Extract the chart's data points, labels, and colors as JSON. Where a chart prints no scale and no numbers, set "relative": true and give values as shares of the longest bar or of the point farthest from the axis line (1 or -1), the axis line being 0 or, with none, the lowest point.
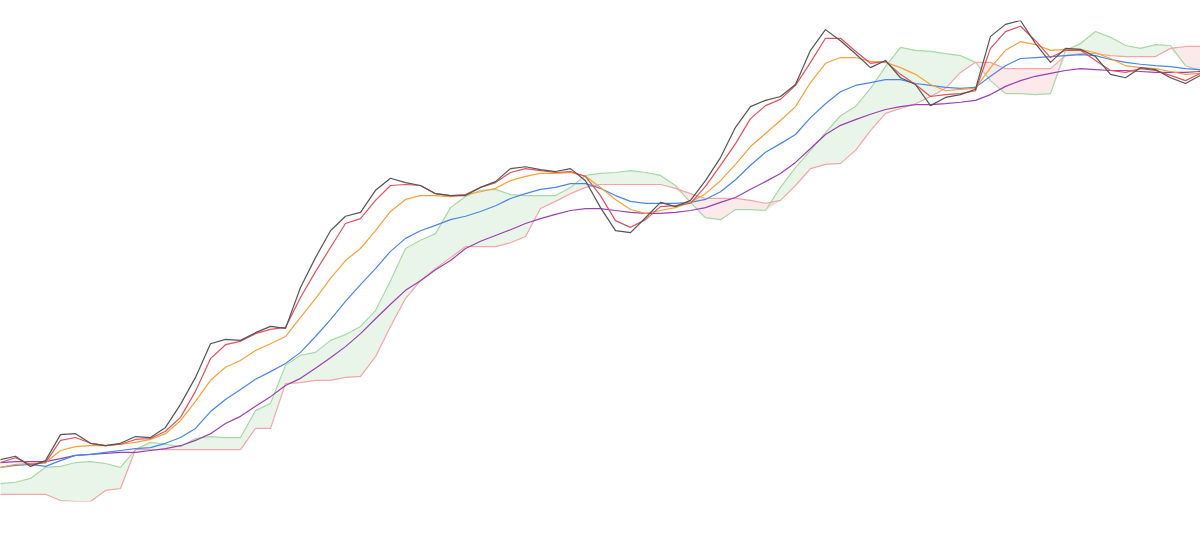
{
  "chart_data": {
    "type": "line",
    "relative": true,
    "categories": [
      null,
      null,
      null,
      null,
      null,
      null,
      null,
      null,
      null,
      null,
      null,
      null,
      null,
      null,
      null,
      null,
      null,
      null,
      null,
      null,
      null,
      null,
      null,
      null,
      null,
      null,
      null,
      null,
      null,
      null,
      null,
      null,
      null,
      null,
      null,
      null,
      null,
      null,
      null,
      null,
      null,
      null,
      null,
      null,
      null,
      null,
      null,
      null,
      null,
      null,
      null,
      null,
      null,
      null,
      null,
      null,
      null,
      null,
      null,
      null,
      null,
      null,
      null,
      null,
      null,
      null,
      null,
      null,
      null,
      null,
      null,
      null,
      null,
      null,
      null,
      null,
      null,
      null,
      null,
      null,
      null
    ],
    "series": [
      {
        "color": "#a8d8a8",
        "values": [
          0.037,
          0.04,
          0.048,
          0.071,
          0.073,
          0.081,
          0.083,
          0.079,
          0.071,
          0.108,
          0.123,
          0.119,
          0.114,
          0.131,
          0.135,
          0.133,
          0.133,
          0.189,
          0.204,
          0.283,
          0.304,
          0.31,
          0.335,
          0.347,
          0.364,
          0.397,
          0.459,
          0.526,
          0.543,
          0.557,
          0.611,
          0.634,
          0.647,
          0.649,
          0.638,
          0.636,
          0.636,
          0.636,
          0.653,
          0.678,
          0.682,
          0.684,
          0.688,
          0.684,
          0.678,
          0.657,
          0.622,
          0.59,
          0.586,
          0.607,
          0.607,
          0.605,
          0.653,
          0.694,
          0.73,
          0.767,
          0.802,
          0.821,
          0.859,
          0.904,
          0.944,
          0.938,
          0.936,
          0.931,
          0.927,
          0.913,
          0.875,
          0.848,
          0.848,
          0.846,
          0.848,
          0.938,
          0.952,
          0.977,
          0.965,
          0.948,
          0.942,
          0.95,
          0.948,
          0.906,
          0.896
        ],
        "lower": [
          0.015,
          0.015,
          0.015,
          0.015,
          0.002,
          0,
          0,
          0.023,
          0.027,
          0.108,
          0.108,
          0.108,
          0.108,
          0.108,
          0.108,
          0.108,
          0.108,
          0.152,
          0.152,
          0.245,
          0.247,
          0.252,
          0.252,
          0.258,
          0.26,
          0.301,
          0.364,
          0.422,
          0.459,
          0.484,
          0.507,
          0.53,
          0.53,
          0.53,
          0.538,
          0.551,
          0.609,
          0.624,
          0.64,
          0.653,
          0.659,
          0.659,
          0.659,
          0.659,
          0.659,
          0.651,
          0.622,
          0.59,
          0.586,
          0.607,
          0.607,
          0.605,
          0.626,
          0.657,
          0.692,
          0.701,
          0.703,
          0.73,
          0.771,
          0.807,
          0.817,
          0.827,
          0.842,
          0.859,
          0.892,
          0.913,
          0.875,
          0.848,
          0.848,
          0.846,
          0.848,
          0.927,
          0.931,
          0.931,
          0.927,
          0.925,
          0.925,
          0.925,
          0.942,
          0.906,
          0.896
        ],
        "upper": [
          0.037,
          0.04,
          0.048,
          0.071,
          0.073,
          0.081,
          0.083,
          0.079,
          0.071,
          0.108,
          0.123,
          0.119,
          0.114,
          0.131,
          0.135,
          0.133,
          0.133,
          0.189,
          0.204,
          0.283,
          0.304,
          0.31,
          0.335,
          0.347,
          0.364,
          0.397,
          0.459,
          0.526,
          0.543,
          0.557,
          0.611,
          0.634,
          0.647,
          0.649,
          0.638,
          0.636,
          0.636,
          0.636,
          0.653,
          0.678,
          0.682,
          0.684,
          0.688,
          0.684,
          0.678,
          0.657,
          0.622,
          0.59,
          0.586,
          0.607,
          0.607,
          0.605,
          0.653,
          0.694,
          0.73,
          0.767,
          0.802,
          0.821,
          0.859,
          0.904,
          0.944,
          0.938,
          0.936,
          0.931,
          0.927,
          0.913,
          0.875,
          0.848,
          0.848,
          0.846,
          0.848,
          0.938,
          0.952,
          0.977,
          0.965,
          0.948,
          0.942,
          0.95,
          0.948,
          0.906,
          0.896
        ]
      },
      {
        "color": "#f2a6a6",
        "values": [
          0.015,
          0.015,
          0.015,
          0.015,
          0.002,
          0,
          0,
          0.023,
          0.027,
          0.108,
          0.108,
          0.108,
          0.108,
          0.108,
          0.108,
          0.108,
          0.108,
          0.152,
          0.152,
          0.245,
          0.247,
          0.252,
          0.252,
          0.258,
          0.26,
          0.301,
          0.364,
          0.422,
          0.459,
          0.484,
          0.507,
          0.53,
          0.53,
          0.53,
          0.538,
          0.551,
          0.609,
          0.624,
          0.64,
          0.653,
          0.659,
          0.659,
          0.659,
          0.659,
          0.659,
          0.651,
          0.64,
          0.63,
          0.63,
          0.63,
          0.626,
          0.62,
          0.626,
          0.657,
          0.692,
          0.701,
          0.703,
          0.73,
          0.771,
          0.807,
          0.817,
          0.827,
          0.842,
          0.859,
          0.892,
          0.913,
          0.913,
          0.9,
          0.9,
          0.9,
          0.9,
          0.927,
          0.931,
          0.931,
          0.927,
          0.925,
          0.925,
          0.925,
          0.942,
          0.946,
          0.946
        ],
        "lower": [
          0.015,
          0.015,
          0.015,
          0.015,
          0.002,
          0,
          0,
          0.023,
          0.027,
          0.108,
          0.108,
          0.108,
          0.108,
          0.108,
          0.108,
          0.108,
          0.108,
          0.152,
          0.152,
          0.245,
          0.247,
          0.252,
          0.252,
          0.258,
          0.26,
          0.301,
          0.364,
          0.422,
          0.459,
          0.484,
          0.507,
          0.53,
          0.53,
          0.53,
          0.538,
          0.551,
          0.609,
          0.624,
          0.64,
          0.653,
          0.659,
          0.659,
          0.659,
          0.659,
          0.659,
          0.651,
          0.622,
          0.59,
          0.586,
          0.607,
          0.607,
          0.605,
          0.626,
          0.657,
          0.692,
          0.701,
          0.703,
          0.73,
          0.771,
          0.807,
          0.817,
          0.827,
          0.842,
          0.859,
          0.892,
          0.913,
          0.875,
          0.848,
          0.848,
          0.846,
          0.848,
          0.927,
          0.931,
          0.931,
          0.927,
          0.925,
          0.925,
          0.925,
          0.942,
          0.906,
          0.896
        ],
        "upper": [
          0.015,
          0.015,
          0.015,
          0.015,
          0.002,
          0,
          0,
          0.023,
          0.027,
          0.108,
          0.108,
          0.108,
          0.108,
          0.108,
          0.108,
          0.108,
          0.108,
          0.152,
          0.152,
          0.245,
          0.247,
          0.252,
          0.252,
          0.258,
          0.26,
          0.301,
          0.364,
          0.422,
          0.459,
          0.484,
          0.507,
          0.53,
          0.53,
          0.53,
          0.538,
          0.551,
          0.609,
          0.624,
          0.64,
          0.653,
          0.659,
          0.659,
          0.659,
          0.659,
          0.659,
          0.651,
          0.64,
          0.63,
          0.63,
          0.63,
          0.626,
          0.62,
          0.626,
          0.657,
          0.692,
          0.701,
          0.703,
          0.73,
          0.771,
          0.807,
          0.817,
          0.827,
          0.842,
          0.859,
          0.892,
          0.913,
          0.913,
          0.9,
          0.9,
          0.9,
          0.9,
          0.927,
          0.931,
          0.931,
          0.927,
          0.925,
          0.925,
          0.925,
          0.942,
          0.946,
          0.946
        ]
      },
      {
        "color": "#9b3fb5",
        "values": [
          0.081,
          0.083,
          0.083,
          0.083,
          0.089,
          0.096,
          0.098,
          0.1,
          0.102,
          0.102,
          0.106,
          0.11,
          0.116,
          0.127,
          0.141,
          0.162,
          0.177,
          0.198,
          0.218,
          0.241,
          0.256,
          0.277,
          0.299,
          0.322,
          0.349,
          0.38,
          0.41,
          0.439,
          0.459,
          0.482,
          0.501,
          0.526,
          0.541,
          0.553,
          0.565,
          0.578,
          0.588,
          0.597,
          0.605,
          0.609,
          0.609,
          0.605,
          0.601,
          0.599,
          0.599,
          0.601,
          0.605,
          0.611,
          0.622,
          0.632,
          0.649,
          0.665,
          0.682,
          0.705,
          0.734,
          0.763,
          0.782,
          0.794,
          0.805,
          0.815,
          0.821,
          0.825,
          0.825,
          0.827,
          0.83,
          0.834,
          0.846,
          0.863,
          0.875,
          0.884,
          0.89,
          0.896,
          0.9,
          0.898,
          0.896,
          0.896,
          0.894,
          0.892,
          0.892,
          0.892,
          0.894
        ]
      },
      {
        "color": "#4a86e8",
        "values": [
          0.071,
          0.075,
          0.077,
          0.073,
          0.085,
          0.096,
          0.098,
          0.102,
          0.106,
          0.11,
          0.112,
          0.121,
          0.133,
          0.152,
          0.187,
          0.212,
          0.233,
          0.254,
          0.27,
          0.287,
          0.31,
          0.343,
          0.378,
          0.416,
          0.451,
          0.484,
          0.52,
          0.547,
          0.563,
          0.574,
          0.586,
          0.593,
          0.603,
          0.615,
          0.63,
          0.64,
          0.649,
          0.653,
          0.661,
          0.661,
          0.651,
          0.636,
          0.624,
          0.62,
          0.62,
          0.62,
          0.622,
          0.628,
          0.644,
          0.669,
          0.699,
          0.726,
          0.744,
          0.763,
          0.798,
          0.827,
          0.852,
          0.865,
          0.871,
          0.877,
          0.877,
          0.869,
          0.865,
          0.861,
          0.859,
          0.861,
          0.884,
          0.906,
          0.921,
          0.923,
          0.925,
          0.927,
          0.929,
          0.927,
          0.919,
          0.913,
          0.909,
          0.906,
          0.904,
          0.9,
          0.898
        ]
      },
      {
        "color": "#f7a23b",
        "values": [
          0.071,
          0.077,
          0.079,
          0.081,
          0.106,
          0.114,
          0.116,
          0.116,
          0.119,
          0.123,
          0.129,
          0.141,
          0.168,
          0.208,
          0.252,
          0.279,
          0.293,
          0.314,
          0.328,
          0.343,
          0.383,
          0.422,
          0.464,
          0.501,
          0.526,
          0.563,
          0.603,
          0.628,
          0.636,
          0.636,
          0.634,
          0.638,
          0.644,
          0.651,
          0.667,
          0.676,
          0.682,
          0.682,
          0.684,
          0.676,
          0.653,
          0.628,
          0.607,
          0.599,
          0.605,
          0.611,
          0.622,
          0.64,
          0.667,
          0.701,
          0.738,
          0.765,
          0.792,
          0.821,
          0.871,
          0.911,
          0.923,
          0.923,
          0.915,
          0.913,
          0.902,
          0.888,
          0.867,
          0.854,
          0.857,
          0.859,
          0.902,
          0.938,
          0.956,
          0.95,
          0.938,
          0.94,
          0.94,
          0.933,
          0.921,
          0.906,
          0.902,
          0.9,
          0.894,
          0.888,
          0.89
        ]
      },
      {
        "color": "#e0525e",
        "values": [
          0.081,
          0.091,
          0.077,
          0.081,
          0.127,
          0.133,
          0.121,
          0.116,
          0.119,
          0.129,
          0.131,
          0.146,
          0.175,
          0.229,
          0.297,
          0.326,
          0.333,
          0.349,
          0.358,
          0.362,
          0.424,
          0.478,
          0.528,
          0.578,
          0.588,
          0.626,
          0.657,
          0.659,
          0.657,
          0.64,
          0.636,
          0.638,
          0.653,
          0.663,
          0.684,
          0.692,
          0.688,
          0.684,
          0.686,
          0.676,
          0.636,
          0.584,
          0.57,
          0.586,
          0.613,
          0.615,
          0.62,
          0.655,
          0.699,
          0.744,
          0.796,
          0.823,
          0.836,
          0.865,
          0.913,
          0.963,
          0.963,
          0.936,
          0.911,
          0.915,
          0.888,
          0.867,
          0.842,
          0.846,
          0.848,
          0.854,
          0.942,
          0.977,
          0.988,
          0.958,
          0.923,
          0.938,
          0.938,
          0.917,
          0.896,
          0.892,
          0.9,
          0.896,
          0.886,
          0.875,
          0.89
        ]
      },
      {
        "color": "#555555",
        "values": [
          0.087,
          0.094,
          0.073,
          0.085,
          0.139,
          0.141,
          0.121,
          0.116,
          0.121,
          0.135,
          0.133,
          0.154,
          0.202,
          0.258,
          0.328,
          0.337,
          0.335,
          0.351,
          0.364,
          0.36,
          0.445,
          0.507,
          0.563,
          0.593,
          0.601,
          0.647,
          0.672,
          0.663,
          0.657,
          0.64,
          0.636,
          0.636,
          0.653,
          0.665,
          0.692,
          0.696,
          0.69,
          0.686,
          0.692,
          0.667,
          0.611,
          0.563,
          0.559,
          0.59,
          0.622,
          0.613,
          0.626,
          0.667,
          0.715,
          0.778,
          0.821,
          0.834,
          0.842,
          0.867,
          0.938,
          0.981,
          0.958,
          0.931,
          0.902,
          0.917,
          0.881,
          0.867,
          0.823,
          0.84,
          0.846,
          0.857,
          0.967,
          0.992,
          1,
          0.952,
          0.913,
          0.942,
          0.94,
          0.925,
          0.888,
          0.881,
          0.902,
          0.898,
          0.881,
          0.869,
          0.886
        ]
      }
    ]
  }
}
